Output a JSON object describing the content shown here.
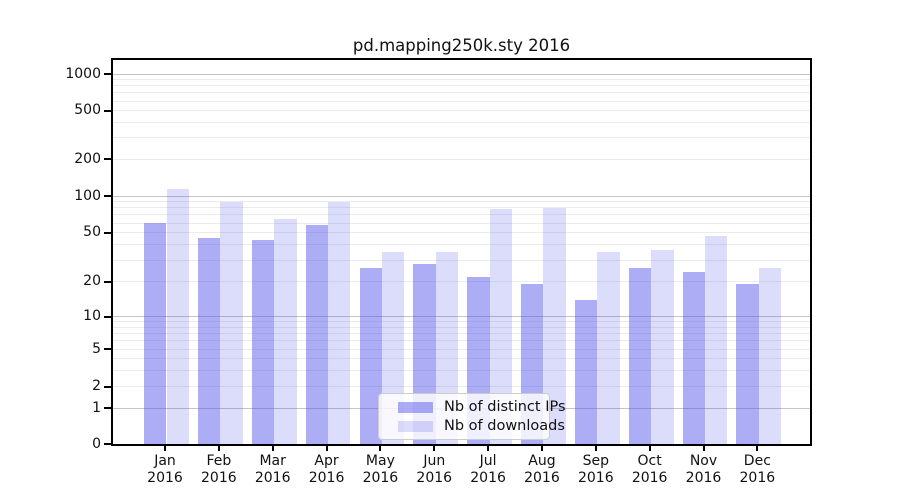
{
  "chart_data": {
    "type": "bar",
    "title": "pd.mapping250k.sty 2016",
    "categories": [
      "Jan",
      "Feb",
      "Mar",
      "Apr",
      "May",
      "Jun",
      "Jul",
      "Aug",
      "Sep",
      "Oct",
      "Nov",
      "Dec"
    ],
    "category_year": "2016",
    "series": [
      {
        "name": "Nb of distinct IPs",
        "color": "#5050eb",
        "alpha": 0.47,
        "apparent_color": "#adadf5",
        "values": [
          60,
          45,
          44,
          58,
          26,
          28,
          22,
          19,
          14,
          26,
          24,
          19
        ]
      },
      {
        "name": "Nb of downloads",
        "color": "#5050eb",
        "alpha": 0.2,
        "apparent_color": "#dcdcfb",
        "values": [
          114,
          90,
          65,
          90,
          35,
          35,
          78,
          80,
          35,
          36,
          47,
          26
        ]
      }
    ],
    "yticks": [
      1000,
      500,
      200,
      100,
      50,
      20,
      10,
      5,
      2,
      1,
      0
    ],
    "yscale": "symlog",
    "ylim": [
      0,
      1300
    ],
    "grid": true,
    "grid_major_color": "#c4c4c4",
    "grid_minor_color": "#ebebeb",
    "legend_position": "lower center, inside plot",
    "legend_entries": [
      "Nb of distinct IPs",
      "Nb of downloads"
    ]
  }
}
